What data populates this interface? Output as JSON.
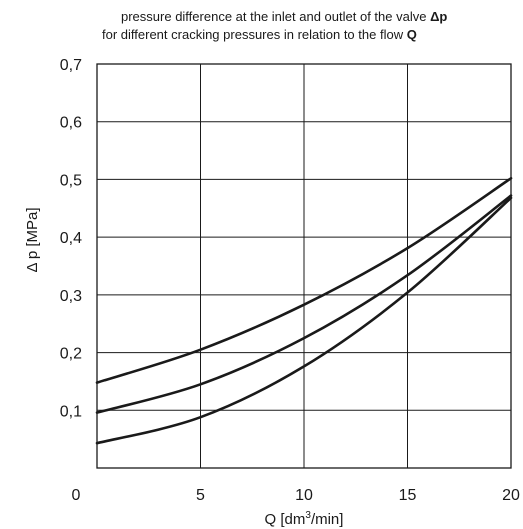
{
  "chart_data": {
    "type": "line",
    "title_line1": "pressure difference at the inlet and outlet of the valve ",
    "title_line1_bold": "Δp",
    "title_line2": "for different cracking pressures in relation to the flow ",
    "title_line2_bold": "Q",
    "xlabel_pre": "Q  [dm",
    "xlabel_sup": "3",
    "xlabel_post": "/min]",
    "ylabel": "Δ p  [MPa]",
    "xlim": [
      0,
      20
    ],
    "ylim": [
      0,
      0.7
    ],
    "x_ticks": [
      0,
      5,
      10,
      15,
      20
    ],
    "y_ticks": [
      0.1,
      0.2,
      0.3,
      0.4,
      0.5,
      0.6,
      0.7
    ],
    "x_tick_labels": [
      "0",
      "5",
      "10",
      "15",
      "20"
    ],
    "y_tick_labels": [
      "0,1",
      "0,2",
      "0,3",
      "0,4",
      "0,5",
      "0,6",
      "0,7"
    ],
    "grid": true,
    "series": [
      {
        "x": [
          0,
          5,
          10,
          15,
          20
        ],
        "y": [
          0.148,
          0.205,
          0.283,
          0.381,
          0.502
        ]
      },
      {
        "x": [
          0,
          5,
          10,
          15,
          20
        ],
        "y": [
          0.096,
          0.145,
          0.225,
          0.334,
          0.472
        ]
      },
      {
        "x": [
          0,
          5,
          10,
          15,
          20
        ],
        "y": [
          0.043,
          0.088,
          0.176,
          0.304,
          0.468
        ]
      }
    ]
  }
}
